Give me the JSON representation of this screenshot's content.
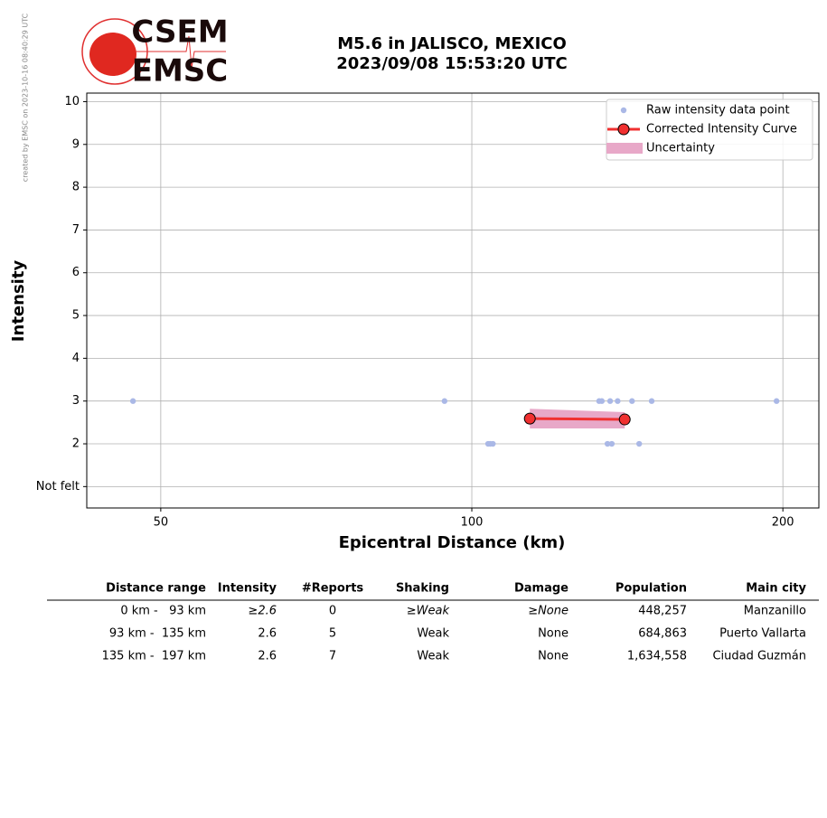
{
  "chart_data": {
    "type": "line",
    "title": [
      "M5.6 in JALISCO, MEXICO",
      "2023/09/08 15:53:20 UTC"
    ],
    "xlabel": "Epicentral Distance (km)",
    "ylabel": "Intensity",
    "xscale": "log",
    "xlim": [
      42.4,
      216.7
    ],
    "xticks": [
      50,
      100,
      200
    ],
    "ylim": [
      0.5,
      10.2
    ],
    "yticks": [
      {
        "value": 1,
        "label": "Not felt"
      },
      2,
      3,
      4,
      5,
      6,
      7,
      8,
      9,
      10
    ],
    "grid": true,
    "legend": "upper right",
    "series": [
      {
        "name": "Raw intensity data point",
        "type": "scatter",
        "color": "#aab8e6",
        "x": [
          47.0,
          94.1,
          103.7,
          104.2,
          104.8,
          132.8,
          133.6,
          136.1,
          138.4,
          142.9,
          149.3,
          135.3,
          136.6,
          145.2,
          197.2
        ],
        "values": [
          3,
          3,
          2,
          2,
          2,
          3,
          3,
          3,
          3,
          3,
          3,
          2,
          2,
          2,
          3
        ]
      },
      {
        "name": "Corrected Intensity Curve",
        "type": "line",
        "color": "#f03030",
        "x": [
          113.8,
          140.6
        ],
        "values": [
          2.59,
          2.57
        ]
      },
      {
        "name": "Uncertainty",
        "type": "band",
        "color": "#e8a8c8",
        "x": [
          113.8,
          140.6
        ],
        "lower": [
          2.36,
          2.36
        ],
        "upper": [
          2.82,
          2.74
        ]
      }
    ]
  },
  "logo": {
    "top": "CSEM",
    "bottom": "EMSC"
  },
  "credit": "created by EMSC on 2023-10-16 08:40:29 UTC",
  "table": {
    "header": [
      "Distance range",
      "Intensity",
      "#Reports",
      "Shaking",
      "Damage",
      "Population",
      "Main city"
    ],
    "rows": [
      [
        "0 km -   93 km",
        "≥2.6",
        "0",
        "≥Weak",
        "≥None",
        "448,257",
        "Manzanillo"
      ],
      [
        "93 km -  135 km",
        "2.6",
        "5",
        "Weak",
        "None",
        "684,863",
        "Puerto Vallarta"
      ],
      [
        "135 km -  197 km",
        "2.6",
        "7",
        "Weak",
        "None",
        "1,634,558",
        "Ciudad Guzmán"
      ]
    ]
  }
}
